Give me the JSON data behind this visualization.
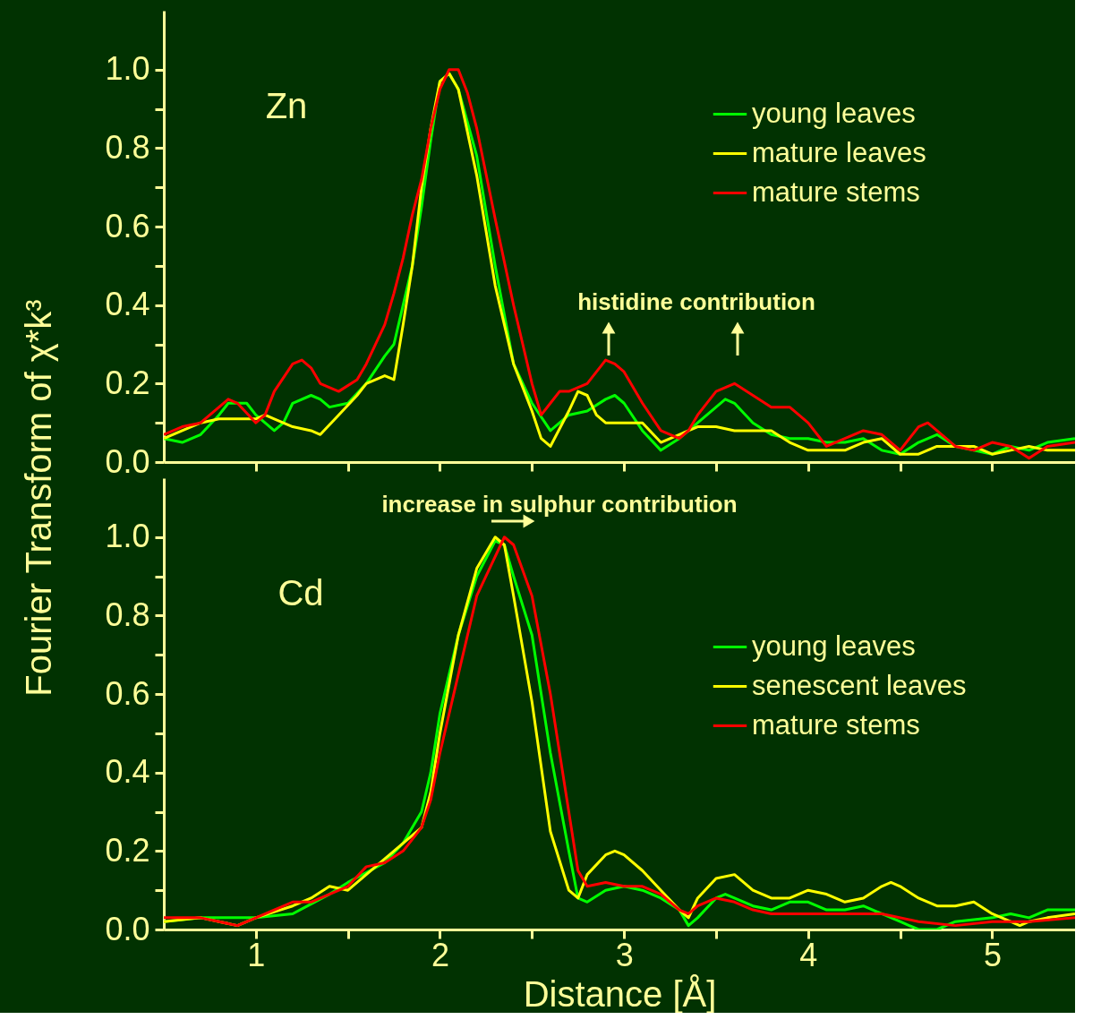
{
  "chart_data": [
    {
      "type": "line",
      "ylabel": "Fourier Transform of  χ*k³",
      "xlim": [
        0.5,
        5.45
      ],
      "ylim": [
        0,
        1.15
      ],
      "xticks": [
        {
          "value": 1,
          "label": null
        },
        {
          "value": 1.5,
          "label": null
        },
        {
          "value": 2,
          "label": null
        },
        {
          "value": 2.5,
          "label": null
        },
        {
          "value": 3,
          "label": null
        },
        {
          "value": 3.5,
          "label": null
        },
        {
          "value": 4,
          "label": null
        },
        {
          "value": 4.5,
          "label": null
        },
        {
          "value": 5,
          "label": null
        }
      ],
      "yticks": [
        {
          "value": 0,
          "label": "0.0"
        },
        {
          "value": 0.1,
          "label": null
        },
        {
          "value": 0.2,
          "label": "0.2"
        },
        {
          "value": 0.3,
          "label": null
        },
        {
          "value": 0.4,
          "label": "0.4"
        },
        {
          "value": 0.5,
          "label": null
        },
        {
          "value": 0.6,
          "label": "0.6"
        },
        {
          "value": 0.7,
          "label": null
        },
        {
          "value": 0.8,
          "label": "0.8"
        },
        {
          "value": 0.9,
          "label": null
        },
        {
          "value": 1.0,
          "label": "1.0"
        }
      ],
      "tick_labels": "y",
      "legend": "top right",
      "annotations": [
        "Zn",
        "histidine contribution"
      ],
      "series": [
        {
          "name": "young leaves",
          "color": "#00ff00",
          "x": [
            0.5,
            0.6,
            0.7,
            0.8,
            0.85,
            0.95,
            1.0,
            1.1,
            1.15,
            1.2,
            1.3,
            1.35,
            1.4,
            1.5,
            1.6,
            1.7,
            1.75,
            1.8,
            1.85,
            1.9,
            1.95,
            2.0,
            2.05,
            2.1,
            2.2,
            2.3,
            2.4,
            2.5,
            2.6,
            2.7,
            2.8,
            2.9,
            2.95,
            3.0,
            3.1,
            3.2,
            3.3,
            3.4,
            3.5,
            3.55,
            3.6,
            3.7,
            3.8,
            3.9,
            4.0,
            4.1,
            4.2,
            4.3,
            4.4,
            4.5,
            4.6,
            4.7,
            4.8,
            4.9,
            5.0,
            5.1,
            5.2,
            5.3,
            5.45
          ],
          "values": [
            0.06,
            0.05,
            0.07,
            0.12,
            0.15,
            0.15,
            0.12,
            0.08,
            0.1,
            0.15,
            0.17,
            0.16,
            0.14,
            0.15,
            0.2,
            0.27,
            0.3,
            0.4,
            0.5,
            0.65,
            0.82,
            0.97,
            0.99,
            0.95,
            0.78,
            0.5,
            0.25,
            0.15,
            0.08,
            0.12,
            0.13,
            0.16,
            0.17,
            0.15,
            0.08,
            0.03,
            0.06,
            0.1,
            0.14,
            0.16,
            0.15,
            0.1,
            0.07,
            0.06,
            0.06,
            0.05,
            0.05,
            0.06,
            0.03,
            0.02,
            0.05,
            0.07,
            0.04,
            0.03,
            0.02,
            0.04,
            0.03,
            0.05,
            0.06
          ]
        },
        {
          "name": "mature leaves",
          "color": "#ffff00",
          "x": [
            0.5,
            0.6,
            0.7,
            0.8,
            1.0,
            1.05,
            1.1,
            1.2,
            1.3,
            1.35,
            1.45,
            1.55,
            1.6,
            1.7,
            1.75,
            1.8,
            1.85,
            1.9,
            1.95,
            2.0,
            2.05,
            2.1,
            2.2,
            2.3,
            2.4,
            2.5,
            2.55,
            2.6,
            2.7,
            2.75,
            2.8,
            2.85,
            2.9,
            3.0,
            3.1,
            3.2,
            3.3,
            3.4,
            3.5,
            3.6,
            3.8,
            3.9,
            4.0,
            4.1,
            4.2,
            4.3,
            4.4,
            4.5,
            4.6,
            4.7,
            4.9,
            5.0,
            5.1,
            5.2,
            5.3,
            5.45
          ],
          "values": [
            0.06,
            0.08,
            0.1,
            0.11,
            0.11,
            0.12,
            0.11,
            0.09,
            0.08,
            0.07,
            0.12,
            0.17,
            0.2,
            0.22,
            0.21,
            0.35,
            0.5,
            0.7,
            0.85,
            0.97,
            0.99,
            0.95,
            0.73,
            0.45,
            0.25,
            0.13,
            0.06,
            0.04,
            0.13,
            0.18,
            0.17,
            0.12,
            0.1,
            0.1,
            0.1,
            0.05,
            0.07,
            0.09,
            0.09,
            0.08,
            0.08,
            0.05,
            0.03,
            0.03,
            0.03,
            0.05,
            0.06,
            0.02,
            0.02,
            0.04,
            0.04,
            0.02,
            0.03,
            0.04,
            0.03,
            0.03
          ]
        },
        {
          "name": "mature stems",
          "color": "#ff0000",
          "x": [
            0.5,
            0.6,
            0.7,
            0.8,
            0.85,
            0.9,
            1.0,
            1.05,
            1.1,
            1.2,
            1.25,
            1.3,
            1.35,
            1.45,
            1.55,
            1.6,
            1.7,
            1.75,
            1.8,
            1.85,
            1.9,
            1.95,
            2.0,
            2.05,
            2.1,
            2.15,
            2.2,
            2.3,
            2.4,
            2.45,
            2.5,
            2.55,
            2.6,
            2.65,
            2.7,
            2.8,
            2.9,
            2.95,
            3.0,
            3.1,
            3.2,
            3.3,
            3.35,
            3.4,
            3.5,
            3.6,
            3.7,
            3.8,
            3.9,
            4.0,
            4.1,
            4.2,
            4.3,
            4.4,
            4.5,
            4.6,
            4.65,
            4.7,
            4.8,
            4.9,
            5.0,
            5.1,
            5.2,
            5.3,
            5.45
          ],
          "values": [
            0.07,
            0.09,
            0.1,
            0.14,
            0.16,
            0.15,
            0.1,
            0.12,
            0.18,
            0.25,
            0.26,
            0.24,
            0.2,
            0.18,
            0.21,
            0.25,
            0.35,
            0.43,
            0.52,
            0.63,
            0.72,
            0.85,
            0.95,
            1.0,
            1.0,
            0.94,
            0.85,
            0.62,
            0.4,
            0.3,
            0.2,
            0.12,
            0.15,
            0.18,
            0.18,
            0.2,
            0.26,
            0.25,
            0.23,
            0.15,
            0.08,
            0.06,
            0.08,
            0.12,
            0.18,
            0.2,
            0.17,
            0.14,
            0.14,
            0.1,
            0.04,
            0.06,
            0.08,
            0.07,
            0.03,
            0.09,
            0.1,
            0.08,
            0.04,
            0.03,
            0.05,
            0.04,
            0.01,
            0.04,
            0.05
          ]
        }
      ]
    },
    {
      "type": "line",
      "xlabel": "Distance [Å]",
      "xlim": [
        0.5,
        5.45
      ],
      "ylim": [
        0,
        1.15
      ],
      "xticks": [
        1,
        {
          "value": 1.5,
          "label": null
        },
        2,
        {
          "value": 2.5,
          "label": null
        },
        3,
        {
          "value": 3.5,
          "label": null
        },
        4,
        {
          "value": 4.5,
          "label": null
        },
        5
      ],
      "yticks": [
        {
          "value": 0,
          "label": "0.0"
        },
        {
          "value": 0.1,
          "label": null
        },
        {
          "value": 0.2,
          "label": "0.2"
        },
        {
          "value": 0.3,
          "label": null
        },
        {
          "value": 0.4,
          "label": "0.4"
        },
        {
          "value": 0.5,
          "label": null
        },
        {
          "value": 0.6,
          "label": "0.6"
        },
        {
          "value": 0.7,
          "label": null
        },
        {
          "value": 0.8,
          "label": "0.8"
        },
        {
          "value": 0.9,
          "label": null
        },
        {
          "value": 1.0,
          "label": "1.0"
        }
      ],
      "legend": "right",
      "annotations": [
        "Cd",
        "increase in sulphur contribution"
      ],
      "series": [
        {
          "name": "young leaves",
          "color": "#00ff00",
          "x": [
            0.5,
            0.7,
            1.0,
            1.2,
            1.4,
            1.5,
            1.7,
            1.8,
            1.9,
            1.95,
            2.0,
            2.1,
            2.2,
            2.3,
            2.35,
            2.4,
            2.5,
            2.6,
            2.7,
            2.75,
            2.8,
            2.9,
            3.0,
            3.1,
            3.2,
            3.3,
            3.35,
            3.4,
            3.5,
            3.55,
            3.6,
            3.7,
            3.8,
            3.9,
            4.0,
            4.1,
            4.2,
            4.3,
            4.4,
            4.5,
            4.6,
            4.7,
            4.8,
            5.0,
            5.1,
            5.2,
            5.3,
            5.45
          ],
          "values": [
            0.02,
            0.03,
            0.03,
            0.04,
            0.09,
            0.12,
            0.17,
            0.22,
            0.3,
            0.4,
            0.55,
            0.75,
            0.9,
            0.99,
            0.98,
            0.9,
            0.75,
            0.45,
            0.2,
            0.08,
            0.07,
            0.1,
            0.11,
            0.1,
            0.08,
            0.05,
            0.01,
            0.03,
            0.08,
            0.09,
            0.08,
            0.06,
            0.05,
            0.07,
            0.07,
            0.05,
            0.05,
            0.06,
            0.04,
            0.02,
            0.0,
            0.0,
            0.02,
            0.03,
            0.04,
            0.03,
            0.05,
            0.05
          ]
        },
        {
          "name": "senescent leaves",
          "color": "#ffff00",
          "x": [
            0.5,
            0.7,
            0.9,
            1.0,
            1.2,
            1.3,
            1.4,
            1.5,
            1.6,
            1.7,
            1.8,
            1.9,
            1.95,
            2.0,
            2.1,
            2.2,
            2.3,
            2.35,
            2.4,
            2.5,
            2.6,
            2.7,
            2.75,
            2.8,
            2.9,
            2.95,
            3.0,
            3.1,
            3.2,
            3.3,
            3.35,
            3.4,
            3.5,
            3.6,
            3.7,
            3.8,
            3.9,
            4.0,
            4.1,
            4.2,
            4.3,
            4.4,
            4.45,
            4.5,
            4.6,
            4.7,
            4.8,
            4.9,
            5.0,
            5.1,
            5.15,
            5.2,
            5.3,
            5.45
          ],
          "values": [
            0.02,
            0.03,
            0.01,
            0.03,
            0.06,
            0.08,
            0.11,
            0.1,
            0.14,
            0.18,
            0.22,
            0.26,
            0.35,
            0.5,
            0.75,
            0.92,
            1.0,
            0.98,
            0.85,
            0.58,
            0.25,
            0.1,
            0.08,
            0.14,
            0.19,
            0.2,
            0.19,
            0.15,
            0.1,
            0.05,
            0.03,
            0.08,
            0.13,
            0.14,
            0.1,
            0.08,
            0.08,
            0.1,
            0.09,
            0.07,
            0.08,
            0.11,
            0.12,
            0.11,
            0.08,
            0.06,
            0.06,
            0.07,
            0.04,
            0.02,
            0.01,
            0.02,
            0.03,
            0.04
          ]
        },
        {
          "name": "mature stems",
          "color": "#ff0000",
          "x": [
            0.5,
            0.7,
            0.9,
            1.0,
            1.1,
            1.2,
            1.3,
            1.4,
            1.5,
            1.6,
            1.7,
            1.8,
            1.9,
            1.95,
            2.0,
            2.1,
            2.2,
            2.3,
            2.35,
            2.4,
            2.5,
            2.6,
            2.7,
            2.75,
            2.8,
            2.9,
            3.0,
            3.1,
            3.2,
            3.3,
            3.35,
            3.4,
            3.5,
            3.6,
            3.7,
            3.8,
            4.0,
            4.2,
            4.4,
            4.6,
            4.8,
            5.0,
            5.2,
            5.45
          ],
          "values": [
            0.03,
            0.03,
            0.01,
            0.03,
            0.05,
            0.07,
            0.07,
            0.09,
            0.11,
            0.16,
            0.17,
            0.2,
            0.26,
            0.33,
            0.45,
            0.65,
            0.85,
            0.95,
            1.0,
            0.98,
            0.85,
            0.6,
            0.3,
            0.15,
            0.11,
            0.12,
            0.11,
            0.11,
            0.09,
            0.05,
            0.04,
            0.06,
            0.08,
            0.07,
            0.05,
            0.04,
            0.04,
            0.04,
            0.04,
            0.02,
            0.01,
            0.02,
            0.02,
            0.03
          ]
        }
      ]
    }
  ]
}
